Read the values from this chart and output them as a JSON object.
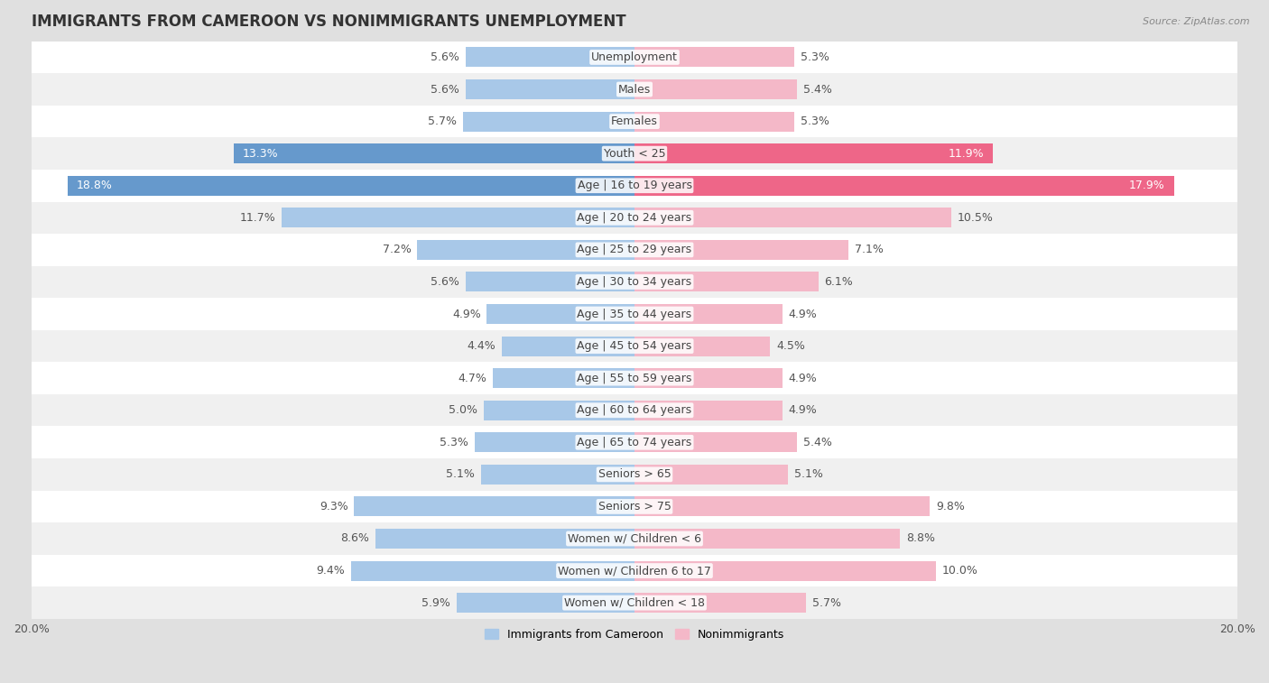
{
  "title": "IMMIGRANTS FROM CAMEROON VS NONIMMIGRANTS UNEMPLOYMENT",
  "source": "Source: ZipAtlas.com",
  "categories": [
    "Unemployment",
    "Males",
    "Females",
    "Youth < 25",
    "Age | 16 to 19 years",
    "Age | 20 to 24 years",
    "Age | 25 to 29 years",
    "Age | 30 to 34 years",
    "Age | 35 to 44 years",
    "Age | 45 to 54 years",
    "Age | 55 to 59 years",
    "Age | 60 to 64 years",
    "Age | 65 to 74 years",
    "Seniors > 65",
    "Seniors > 75",
    "Women w/ Children < 6",
    "Women w/ Children 6 to 17",
    "Women w/ Children < 18"
  ],
  "immigrants": [
    5.6,
    5.6,
    5.7,
    13.3,
    18.8,
    11.7,
    7.2,
    5.6,
    4.9,
    4.4,
    4.7,
    5.0,
    5.3,
    5.1,
    9.3,
    8.6,
    9.4,
    5.9
  ],
  "nonimmigrants": [
    5.3,
    5.4,
    5.3,
    11.9,
    17.9,
    10.5,
    7.1,
    6.1,
    4.9,
    4.5,
    4.9,
    4.9,
    5.4,
    5.1,
    9.8,
    8.8,
    10.0,
    5.7
  ],
  "immigrant_color": "#a8c8e8",
  "nonimmigrant_color": "#f4b8c8",
  "highlight_immigrant_color": "#6699cc",
  "highlight_nonimmigrant_color": "#ee6688",
  "row_color_odd": "#f5f5f5",
  "row_color_even": "#e8e8e8",
  "row_white": "#ffffff",
  "background_color": "#e0e0e0",
  "max_val": 20.0,
  "legend_immigrant": "Immigrants from Cameroon",
  "legend_nonimmigrant": "Nonimmigrants",
  "title_fontsize": 12,
  "label_fontsize": 9,
  "bar_height": 0.62,
  "highlight_rows": [
    3,
    4
  ]
}
